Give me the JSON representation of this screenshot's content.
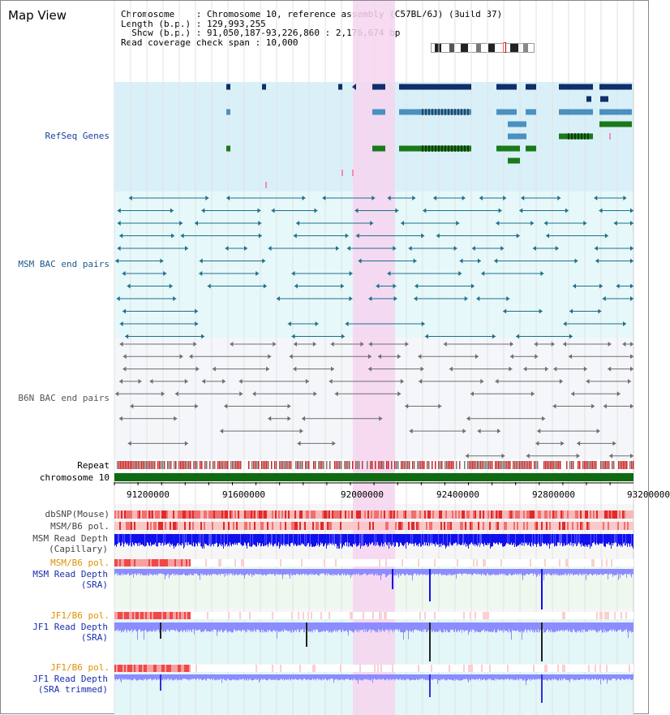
{
  "title": "Map View",
  "info": {
    "line1": "Chromosome    : Chromosome 10, reference assembly (C57BL/6J) (Build 37)",
    "line2": "Length (b.p.) : 129,993,255",
    "line3": "  Show (b.p.) : 91,050,187-93,226,860 : 2,176,674 bp",
    "line4": "Read coverage check span : 10,000"
  },
  "tracks": {
    "refseq": "RefSeq Genes",
    "msm_bac": "MSM BAC end pairs",
    "b6n_bac": "B6N BAC end pairs",
    "repeat": "Repeat",
    "chromosome": "chromosome 10",
    "dbsnp": "dbSNP(Mouse)",
    "msm_b6_pol": "MSM/B6 pol.",
    "msm_read_depth_cap": "MSM Read Depth\n(Capillary)",
    "msm_b6_pol_2": "MSM/B6 pol.",
    "msm_read_depth_sra": "MSM Read Depth\n(SRA)",
    "jf1_b6_pol": "JF1/B6 pol.",
    "jf1_read_depth_sra": "JF1 Read Depth\n(SRA)",
    "jf1_b6_pol_2": "JF1/B6 pol.",
    "jf1_read_depth_trim": "JF1 Read Depth\n(SRA trimmed)"
  },
  "axis": {
    "ticks": [
      "91200000",
      "91600000",
      "92000000",
      "92400000",
      "92800000",
      "93200000"
    ]
  },
  "colors": {
    "refseq_bg": "#daf0f8",
    "msm_bg": "#e6f8fa",
    "b6n_bg": "#f4f6fa",
    "highlight": "#f7d4f0",
    "dark_blue": "#0f2f6a",
    "light_blue": "#4a90c0",
    "green": "#1a7a1a",
    "teal": "#1f6f8b",
    "gray": "#6e6e6e",
    "depth_blue": "#0000ee",
    "depth_light": "#8c8cff",
    "snp_red": "#e03030"
  }
}
